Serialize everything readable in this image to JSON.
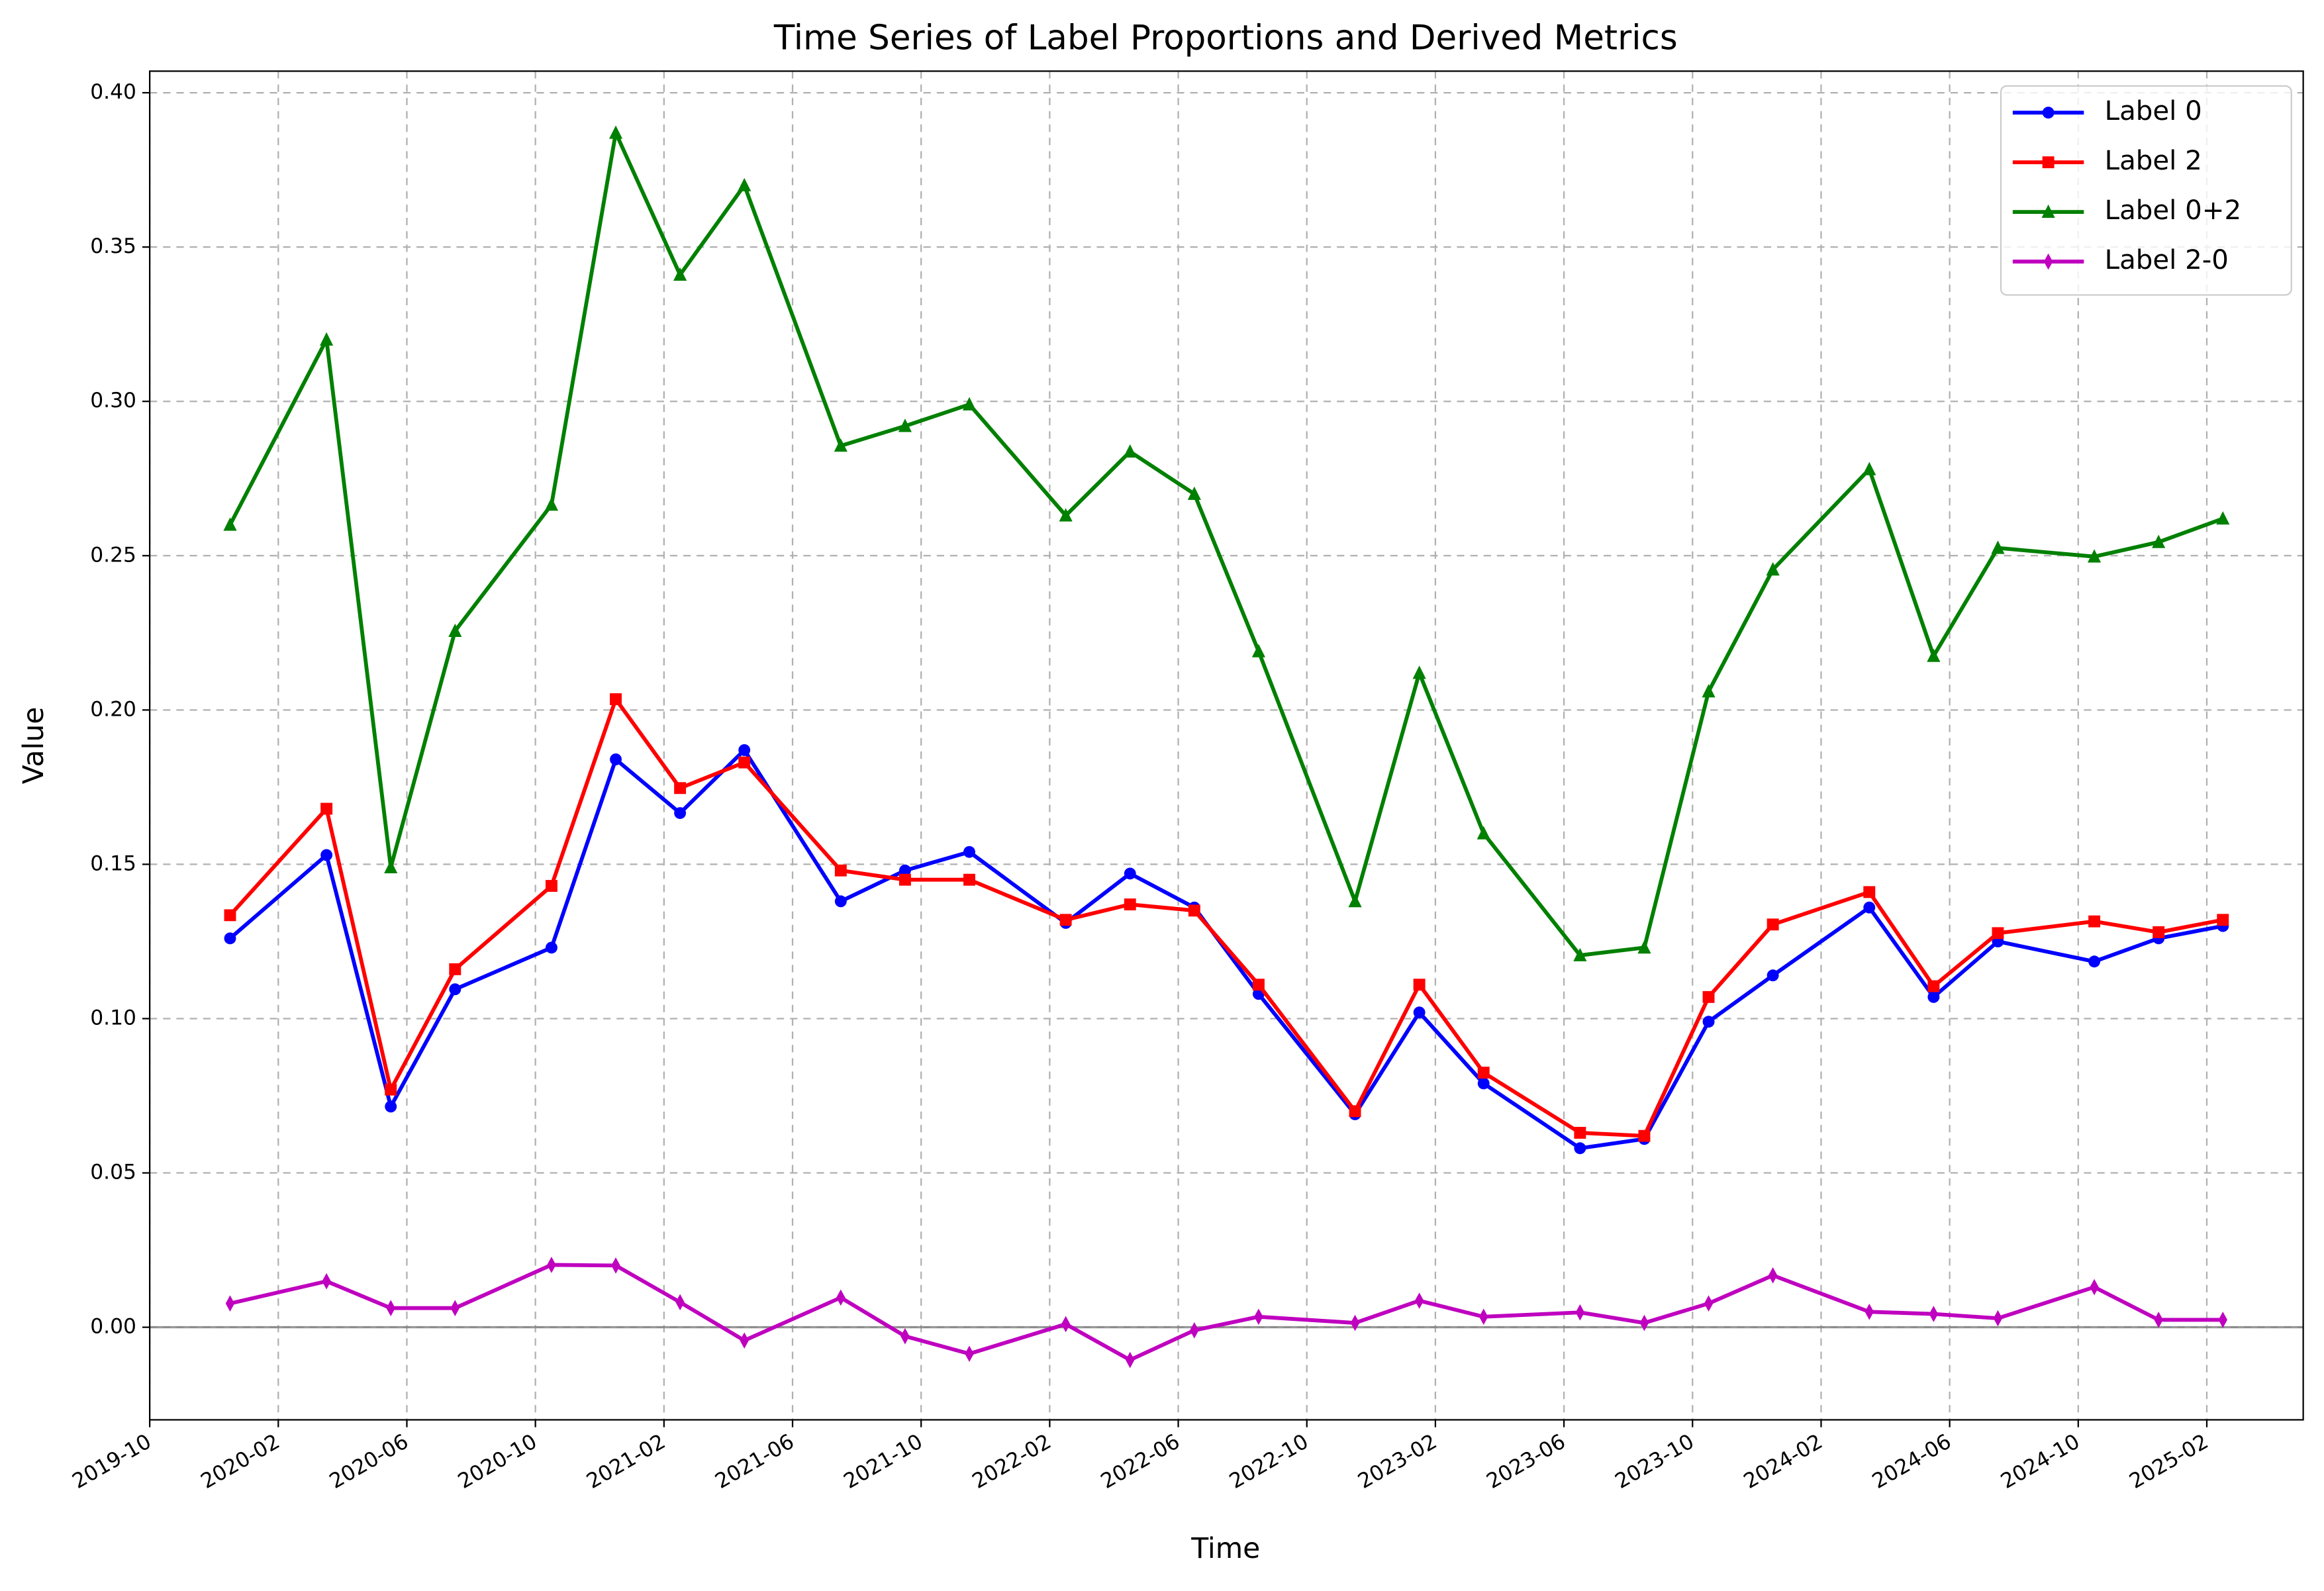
{
  "chart_data": {
    "type": "line",
    "title": "Time Series of Label Proportions and Derived Metrics",
    "x_label": "Time",
    "y_label": "Value",
    "x": [
      "2019-12",
      "2020-03",
      "2020-05",
      "2020-07",
      "2020-10",
      "2020-12",
      "2021-02",
      "2021-04",
      "2021-07",
      "2021-09",
      "2021-11",
      "2022-02",
      "2022-04",
      "2022-06",
      "2022-08",
      "2022-11",
      "2023-01",
      "2023-03",
      "2023-06",
      "2023-08",
      "2023-10",
      "2023-12",
      "2024-03",
      "2024-05",
      "2024-07",
      "2024-10",
      "2024-12",
      "2025-02"
    ],
    "series": [
      {
        "name": "Label 0",
        "color": "#0000ff",
        "marker": "circle",
        "values": [
          0.126,
          0.153,
          0.0715,
          0.1095,
          0.123,
          0.184,
          0.1666,
          0.187,
          0.138,
          0.148,
          0.154,
          0.131,
          0.147,
          0.136,
          0.108,
          0.069,
          0.102,
          0.079,
          0.058,
          0.061,
          0.099,
          0.114,
          0.136,
          0.107,
          0.125,
          0.1185,
          0.126,
          0.13
        ]
      },
      {
        "name": "Label 2",
        "color": "#ff0000",
        "marker": "square",
        "values": [
          0.1335,
          0.168,
          0.077,
          0.116,
          0.143,
          0.2035,
          0.1747,
          0.183,
          0.148,
          0.145,
          0.145,
          0.132,
          0.137,
          0.135,
          0.111,
          0.07,
          0.111,
          0.0825,
          0.063,
          0.062,
          0.107,
          0.1305,
          0.141,
          0.1105,
          0.1277,
          0.1315,
          0.128,
          0.132
        ]
      },
      {
        "name": "Label 0+2",
        "color": "#008000",
        "marker": "triangle",
        "values": [
          0.26,
          0.32,
          0.149,
          0.2256,
          0.2665,
          0.387,
          0.341,
          0.37,
          0.2856,
          0.292,
          0.299,
          0.263,
          0.2837,
          0.27,
          0.219,
          0.138,
          0.212,
          0.16,
          0.1205,
          0.123,
          0.206,
          0.2455,
          0.278,
          0.2175,
          0.2525,
          0.2497,
          0.2544,
          0.262
        ]
      },
      {
        "name": "Label 2-0",
        "color": "#bf00bf",
        "marker": "thin-diamond",
        "values": [
          0.0077,
          0.0149,
          0.0062,
          0.0062,
          0.0202,
          0.02,
          0.0081,
          -0.0043,
          0.0096,
          -0.0029,
          -0.0086,
          0.001,
          -0.0106,
          -0.001,
          0.0034,
          0.0014,
          0.0086,
          0.0034,
          0.0048,
          0.0014,
          0.0077,
          0.0168,
          0.005,
          0.0043,
          0.0029,
          0.013,
          0.0024,
          0.0024
        ]
      }
    ],
    "xlim": [
      "2019-10",
      "2025-05"
    ],
    "xticks": [
      "2019-10",
      "2020-02",
      "2020-06",
      "2020-10",
      "2021-02",
      "2021-06",
      "2021-10",
      "2022-02",
      "2022-06",
      "2022-10",
      "2023-02",
      "2023-06",
      "2023-10",
      "2024-02",
      "2024-06",
      "2024-10",
      "2025-02"
    ],
    "ylim": [
      -0.03,
      0.407
    ],
    "yticks": [
      {
        "value": 0,
        "label": "0.00"
      },
      {
        "value": 0.05,
        "label": "0.05"
      },
      {
        "value": 0.1,
        "label": "0.10"
      },
      {
        "value": 0.15,
        "label": "0.15"
      },
      {
        "value": 0.2,
        "label": "0.20"
      },
      {
        "value": 0.25,
        "label": "0.25"
      },
      {
        "value": 0.3,
        "label": "0.30"
      },
      {
        "value": 0.35,
        "label": "0.35"
      },
      {
        "value": 0.4,
        "label": "0.40"
      }
    ],
    "reference_line": 0,
    "grid": true,
    "legend": "upper right"
  }
}
